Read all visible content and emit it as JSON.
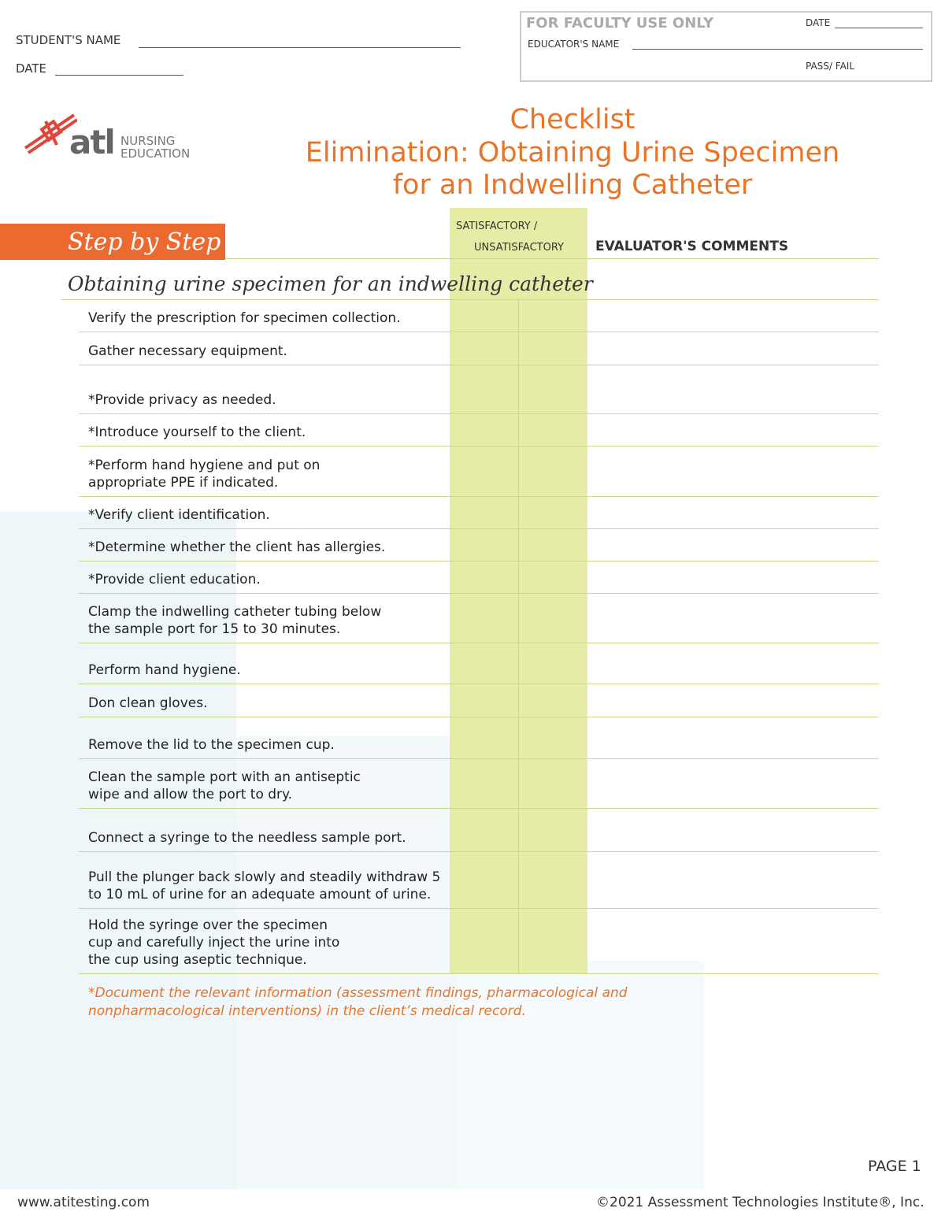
{
  "student": {
    "name_label": "STUDENT'S NAME",
    "date_label": "DATE"
  },
  "faculty": {
    "title": "FOR FACULTY USE ONLY",
    "date_label": "DATE",
    "educator_label": "EDUCATOR'S NAME",
    "result_label": "PASS/ FAIL"
  },
  "logo": {
    "mark": "atl",
    "line1": "NURSING",
    "line2": "EDUCATION"
  },
  "header": {
    "title": "Checklist",
    "subtitle": [
      "Elimination: Obtaining Urine Specimen",
      "for an Indwelling Catheter"
    ]
  },
  "table": {
    "tab": "Step by Step",
    "col_sat": [
      "SATISFACTORY /",
      "UNSATISFACTORY"
    ],
    "col_comments": "EVALUATOR'S COMMENTS",
    "section": "Obtaining urine specimen for an indwelling catheter",
    "steps": [
      [
        "Verify the prescription for specimen collection."
      ],
      [
        "Gather necessary equipment."
      ],
      [
        "*Provide privacy as needed."
      ],
      [
        "*Introduce yourself to the client."
      ],
      [
        "*Perform hand hygiene and put on",
        "appropriate PPE if indicated."
      ],
      [
        "*Verify client identification."
      ],
      [
        "*Determine whether the client has allergies."
      ],
      [
        "*Provide client education."
      ],
      [
        "Clamp the indwelling catheter tubing below",
        "the sample port for 15 to 30 minutes."
      ],
      [
        "Perform hand hygiene."
      ],
      [
        "Don clean gloves."
      ],
      [
        "Remove the lid to the specimen cup."
      ],
      [
        "Clean the sample port with an antiseptic",
        "wipe and allow the port to dry."
      ],
      [
        "Connect a syringe to the needless sample port."
      ],
      [
        "Pull the plunger back slowly and steadily withdraw 5",
        "to 10 mL of urine for an adequate amount of urine."
      ],
      [
        "Hold the syringe over the specimen",
        "cup and carefully inject the urine into",
        "the cup using aseptic technique."
      ]
    ],
    "note": [
      "*Document the relevant information (assessment findings, pharmacological and",
      "nonpharmacological interventions) in the client’s medical record."
    ]
  },
  "footer": {
    "page": "PAGE 1",
    "url": "www.atitesting.com",
    "copyright": "©2021 Assessment Technologies Institute®, Inc."
  }
}
